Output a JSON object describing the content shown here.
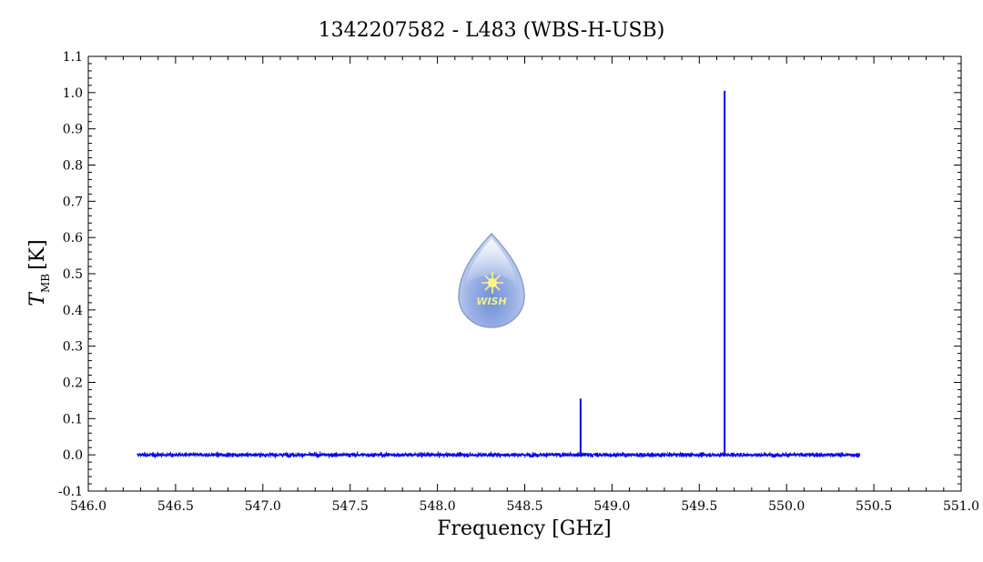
{
  "chart_data": {
    "type": "line",
    "title": "1342207582 - L483 (WBS-H-USB)",
    "xlabel": "Frequency [GHz]",
    "ylabel_main": "T",
    "ylabel_sub": "MB",
    "ylabel_unit": "[K]",
    "xlim": [
      546.0,
      551.0
    ],
    "ylim": [
      -0.1,
      1.1
    ],
    "xticks": [
      "546.0",
      "546.5",
      "547.0",
      "547.5",
      "548.0",
      "548.5",
      "549.0",
      "549.5",
      "550.0",
      "550.5",
      "551.0"
    ],
    "yticks": [
      "-0.1",
      "0.0",
      "0.1",
      "0.2",
      "0.3",
      "0.4",
      "0.5",
      "0.6",
      "0.7",
      "0.8",
      "0.9",
      "1.0",
      "1.1"
    ],
    "grid": false,
    "series": [
      {
        "color": "#0000ee",
        "x_range": [
          546.28,
          550.42
        ],
        "baseline": 0.0,
        "noise_rms": 0.006,
        "peaks": [
          {
            "x": 548.82,
            "y": 0.155
          },
          {
            "x": 549.645,
            "y": 1.005
          }
        ]
      }
    ],
    "logo": {
      "text": "WISH"
    }
  }
}
